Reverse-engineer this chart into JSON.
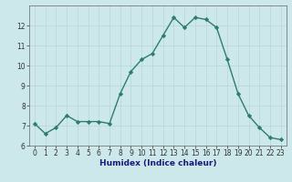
{
  "xlabel": "Humidex (Indice chaleur)",
  "ylabel": "",
  "x": [
    0,
    1,
    2,
    3,
    4,
    5,
    6,
    7,
    8,
    9,
    10,
    11,
    12,
    13,
    14,
    15,
    16,
    17,
    18,
    19,
    20,
    21,
    22,
    23
  ],
  "y": [
    7.1,
    6.6,
    6.9,
    7.5,
    7.2,
    7.2,
    7.2,
    7.1,
    8.6,
    9.7,
    10.3,
    10.6,
    11.5,
    12.4,
    11.9,
    12.4,
    12.3,
    11.9,
    10.3,
    8.6,
    7.5,
    6.9,
    6.4,
    6.3
  ],
  "line_color": "#2d7d6e",
  "marker": "D",
  "marker_size": 2.2,
  "line_width": 1.0,
  "bg_color": "#cce8ea",
  "grid_color": "#b8d4d6",
  "xlim": [
    -0.5,
    23.5
  ],
  "ylim": [
    6.0,
    13.0
  ],
  "yticks": [
    6,
    7,
    8,
    9,
    10,
    11,
    12
  ],
  "xticks": [
    0,
    1,
    2,
    3,
    4,
    5,
    6,
    7,
    8,
    9,
    10,
    11,
    12,
    13,
    14,
    15,
    16,
    17,
    18,
    19,
    20,
    21,
    22,
    23
  ],
  "axis_fontsize": 6.5,
  "tick_fontsize": 5.5,
  "xlabel_color": "#1a1a7a",
  "tick_color": "#333333",
  "spine_color": "#666666"
}
